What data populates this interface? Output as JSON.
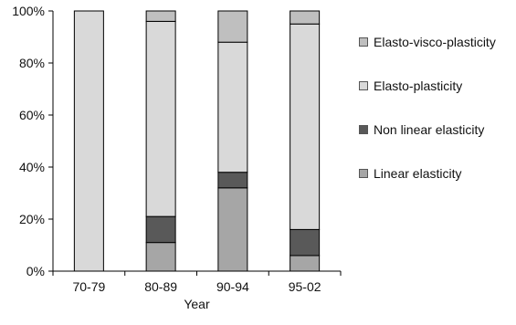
{
  "chart_data": {
    "type": "bar",
    "stacked": true,
    "normalized": true,
    "categories": [
      "70-79",
      "80-89",
      "90-94",
      "95-02"
    ],
    "series": [
      {
        "name": "Linear elasticity",
        "color": "#a6a6a6",
        "values": [
          0,
          11,
          32,
          6
        ]
      },
      {
        "name": "Non linear elasticity",
        "color": "#595959",
        "values": [
          0,
          10,
          6,
          10
        ]
      },
      {
        "name": "Elasto-plasticity",
        "color": "#d9d9d9",
        "values": [
          100,
          75,
          50,
          79
        ]
      },
      {
        "name": "Elasto-visco-plasticity",
        "color": "#bfbfbf",
        "values": [
          0,
          4,
          12,
          5
        ]
      }
    ],
    "yticks": [
      "0%",
      "20%",
      "40%",
      "60%",
      "80%",
      "100%"
    ],
    "ylim": [
      0,
      100
    ],
    "xlabel": "Year",
    "ylabel": "",
    "legend": {
      "position": "right",
      "order": [
        "Elasto-visco-plasticity",
        "Elasto-plasticity",
        "Non linear elasticity",
        "Linear elasticity"
      ]
    }
  }
}
